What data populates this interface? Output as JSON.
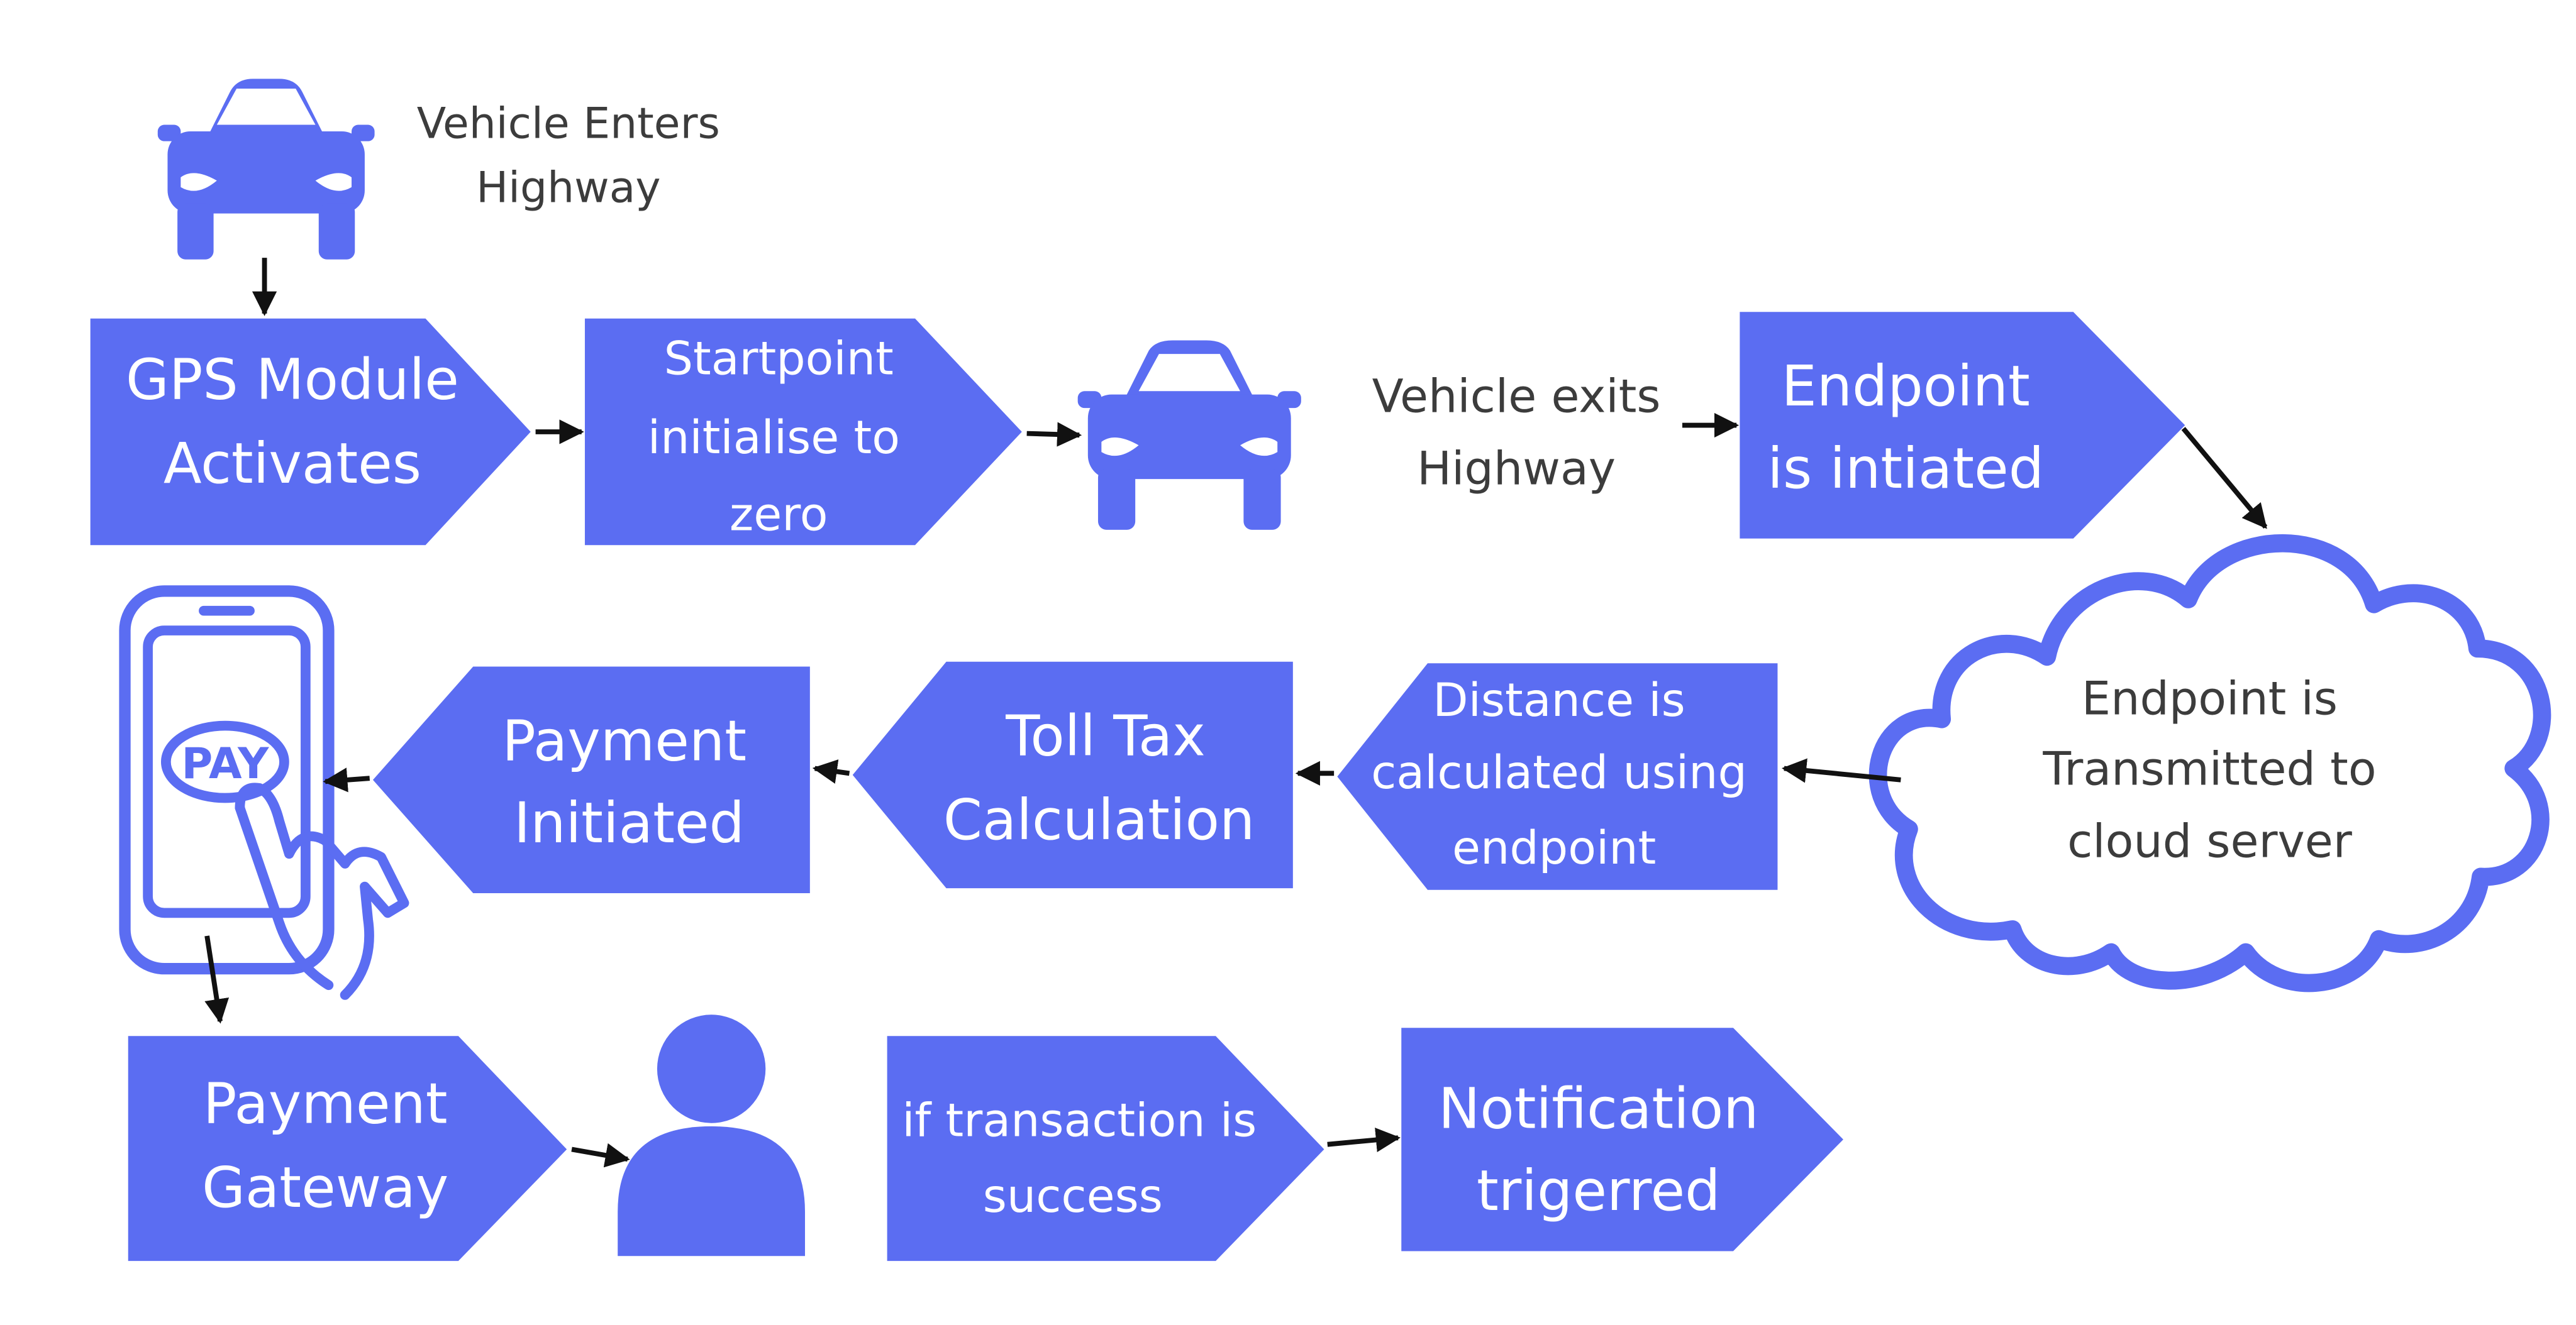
{
  "colors": {
    "accent": "#5b6df2",
    "arrow": "#111111",
    "label_text": "#3c3c3c",
    "box_text": "#ffffff"
  },
  "icons": [
    "car-icon",
    "phone-pay-icon",
    "cloud-icon",
    "person-icon"
  ],
  "labels": {
    "vehicle_enters": [
      "Vehicle Enters",
      "Highway"
    ],
    "vehicle_exits": [
      "Vehicle exits",
      "Highway"
    ],
    "pay_text": "PAY"
  },
  "nodes": {
    "gps_module": [
      "GPS Module",
      "Activates"
    ],
    "startpoint": [
      "Startpoint",
      "initialise to",
      "zero"
    ],
    "endpoint_initiated": [
      "Endpoint",
      "is intiated"
    ],
    "cloud": [
      "Endpoint is",
      "Transmitted to",
      "cloud server"
    ],
    "distance": [
      "Distance is",
      "calculated using",
      "endpoint"
    ],
    "toll_tax": [
      "Toll Tax",
      "Calculation"
    ],
    "payment_initiated": [
      "Payment",
      "Initiated"
    ],
    "payment_gateway": [
      "Payment",
      "Gateway"
    ],
    "transaction_success": [
      "if transaction is",
      "success"
    ],
    "notification": [
      "Notification",
      "trigerred"
    ]
  }
}
